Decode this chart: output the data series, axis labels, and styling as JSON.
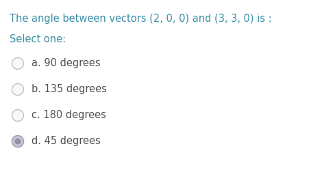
{
  "title": "The angle between vectors (2, 0, 0) and (3, 3, 0) is :",
  "select_label": "Select one:",
  "options": [
    "a. 90 degrees",
    "b. 135 degrees",
    "c. 180 degrees",
    "d. 45 degrees"
  ],
  "selected_index": 3,
  "title_color": "#3a8fa8",
  "select_color": "#3a8fa8",
  "option_color": "#505050",
  "background_color": "#ffffff",
  "title_fontsize": 10.5,
  "select_fontsize": 10.5,
  "option_fontsize": 10.5,
  "radio_unselected_edge": "#c0c0c0",
  "radio_unselected_fill": "#f8f8f8",
  "radio_selected_edge": "#a0a0b0",
  "radio_selected_fill": "#c8c8d4",
  "radio_selected_inner": "#9090a8"
}
